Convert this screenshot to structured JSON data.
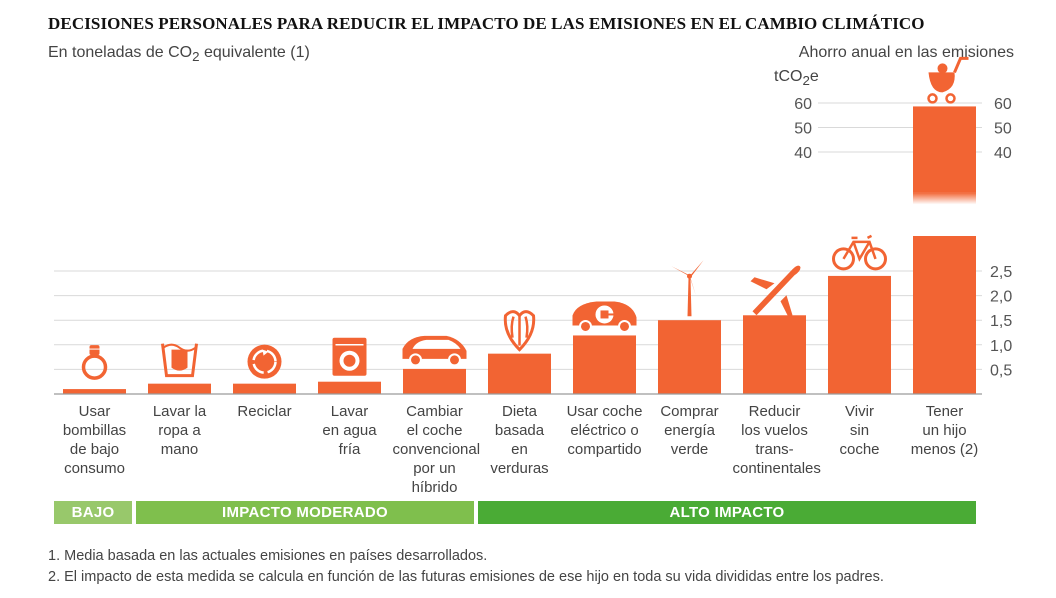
{
  "title": "DECISIONES PERSONALES PARA REDUCIR EL IMPACTO DE LAS EMISIONES EN EL CAMBIO CLIMÁTICO",
  "subtitle": {
    "before": "En toneladas de CO",
    "sub": "2",
    "after": " equivalente (1)"
  },
  "right_label": "Ahorro anual en las emisiones",
  "unit_label": {
    "before": "tCO",
    "sub": "2",
    "after": "e"
  },
  "chart_data": {
    "type": "bar",
    "categories": [
      [
        "Usar",
        "bombillas",
        "de bajo",
        "consumo"
      ],
      [
        "Lavar la",
        "ropa a",
        "mano"
      ],
      [
        "Reciclar"
      ],
      [
        "Lavar",
        "en agua",
        "fría"
      ],
      [
        "Cambiar",
        "el coche",
        "convencional",
        "por un híbrido"
      ],
      [
        "Dieta",
        "basada",
        "en",
        "verduras"
      ],
      [
        "Usar coche",
        "eléctrico o",
        "compartido"
      ],
      [
        "Comprar",
        "energía",
        "verde"
      ],
      [
        "Reducir",
        "los vuelos",
        "trans-",
        "continentales"
      ],
      [
        "Vivir",
        "sin",
        "coche"
      ],
      [
        "Tener",
        "un hijo",
        "menos (2)"
      ]
    ],
    "values": [
      0.1,
      0.21,
      0.21,
      0.25,
      0.51,
      0.82,
      1.19,
      1.5,
      1.6,
      2.4,
      58.6
    ],
    "icons": [
      "light-bulb-icon",
      "hand-wash-icon",
      "recycle-icon",
      "washing-machine-icon",
      "hybrid-car-icon",
      "vegetables-icon",
      "electric-car-icon",
      "wind-turbine-icon",
      "airplane-icon",
      "bicycle-icon",
      "stroller-icon"
    ],
    "axis_low": {
      "range": [
        0,
        2.7
      ],
      "ticks": [
        "0,5",
        "1,0",
        "1,5",
        "2,0",
        "2,5"
      ],
      "tick_values": [
        0.5,
        1.0,
        1.5,
        2.0,
        2.5
      ]
    },
    "axis_high": {
      "range": [
        35,
        62
      ],
      "ticks": [
        "40",
        "50",
        "60"
      ],
      "tick_values": [
        40,
        50,
        60
      ]
    },
    "broken_axis": true,
    "grid": true,
    "bar_color": "#f26433"
  },
  "impact_groups": [
    {
      "label": "BAJO",
      "color": "#98c86b"
    },
    {
      "label": "IMPACTO MODERADO",
      "color": "#7fbf4d"
    },
    {
      "label": "ALTO IMPACTO",
      "color": "#4aab35"
    }
  ],
  "notes": [
    "1. Media basada en las actuales emisiones en países desarrollados.",
    "2. El impacto de esta medida se calcula en función de las futuras emisiones de ese hijo en toda su vida divididas entre los padres."
  ]
}
